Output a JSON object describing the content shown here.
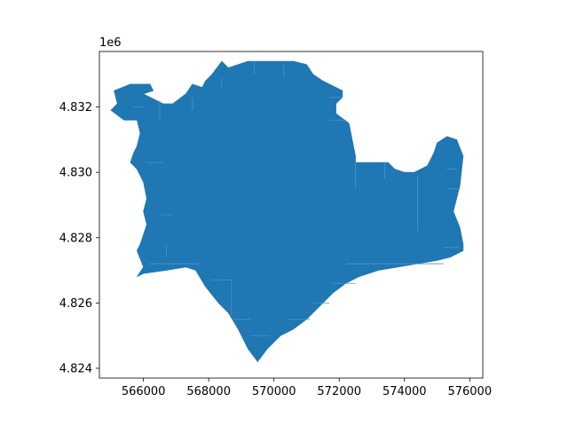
{
  "chart_data": {
    "type": "map",
    "title": "",
    "xlabel": "",
    "ylabel": "",
    "fill_color": "#1f77b4",
    "cell_edge_color": "#5a8fbf",
    "xlim": [
      564650,
      576400
    ],
    "ylim": [
      4823700,
      4833700
    ],
    "y_offset_label": "1e6",
    "x_ticks": [
      {
        "value": 566000,
        "label": "566000"
      },
      {
        "value": 568000,
        "label": "568000"
      },
      {
        "value": 570000,
        "label": "570000"
      },
      {
        "value": 572000,
        "label": "572000"
      },
      {
        "value": 574000,
        "label": "574000"
      },
      {
        "value": 576000,
        "label": "576000"
      }
    ],
    "y_ticks": [
      {
        "value": 4824000,
        "label": "4.824"
      },
      {
        "value": 4826000,
        "label": "4.826"
      },
      {
        "value": 4828000,
        "label": "4.828"
      },
      {
        "value": 4830000,
        "label": "4.830"
      },
      {
        "value": 4832000,
        "label": "4.832"
      }
    ],
    "boundary": [
      [
        568400,
        4833400
      ],
      [
        568600,
        4833200
      ],
      [
        569200,
        4833400
      ],
      [
        570600,
        4833400
      ],
      [
        571000,
        4833300
      ],
      [
        571200,
        4833000
      ],
      [
        571500,
        4832800
      ],
      [
        571900,
        4832600
      ],
      [
        572100,
        4832500
      ],
      [
        572100,
        4832300
      ],
      [
        571900,
        4832100
      ],
      [
        571900,
        4831800
      ],
      [
        572300,
        4831500
      ],
      [
        572400,
        4831000
      ],
      [
        572500,
        4830500
      ],
      [
        572500,
        4830300
      ],
      [
        572800,
        4830300
      ],
      [
        573200,
        4830300
      ],
      [
        573500,
        4830300
      ],
      [
        573700,
        4830100
      ],
      [
        574000,
        4830000
      ],
      [
        574300,
        4830000
      ],
      [
        574700,
        4830200
      ],
      [
        574900,
        4830600
      ],
      [
        575000,
        4830900
      ],
      [
        575300,
        4831100
      ],
      [
        575600,
        4831000
      ],
      [
        575800,
        4830500
      ],
      [
        575700,
        4829600
      ],
      [
        575500,
        4828800
      ],
      [
        575700,
        4828300
      ],
      [
        575800,
        4827800
      ],
      [
        575800,
        4827600
      ],
      [
        575400,
        4827400
      ],
      [
        575000,
        4827300
      ],
      [
        574400,
        4827200
      ],
      [
        573800,
        4827100
      ],
      [
        573200,
        4827000
      ],
      [
        572600,
        4826800
      ],
      [
        572200,
        4826600
      ],
      [
        571800,
        4826300
      ],
      [
        571400,
        4825900
      ],
      [
        571000,
        4825500
      ],
      [
        570600,
        4825200
      ],
      [
        570200,
        4825000
      ],
      [
        569800,
        4824600
      ],
      [
        569500,
        4824200
      ],
      [
        569200,
        4824600
      ],
      [
        568900,
        4825200
      ],
      [
        568600,
        4825700
      ],
      [
        568300,
        4826000
      ],
      [
        567900,
        4826500
      ],
      [
        567600,
        4827000
      ],
      [
        567300,
        4827100
      ],
      [
        566700,
        4827000
      ],
      [
        566000,
        4826900
      ],
      [
        565800,
        4826800
      ],
      [
        566000,
        4827100
      ],
      [
        565800,
        4827600
      ],
      [
        565900,
        4827800
      ],
      [
        566100,
        4828400
      ],
      [
        566000,
        4828800
      ],
      [
        566100,
        4829200
      ],
      [
        566000,
        4829700
      ],
      [
        565800,
        4830100
      ],
      [
        565600,
        4830300
      ],
      [
        565700,
        4830600
      ],
      [
        565800,
        4830800
      ],
      [
        565900,
        4831200
      ],
      [
        565800,
        4831600
      ],
      [
        565400,
        4831600
      ],
      [
        565000,
        4831900
      ],
      [
        565200,
        4832100
      ],
      [
        565100,
        4832500
      ],
      [
        565600,
        4832700
      ],
      [
        566200,
        4832700
      ],
      [
        566300,
        4832500
      ],
      [
        566000,
        4832400
      ],
      [
        566600,
        4832100
      ],
      [
        566900,
        4832100
      ],
      [
        567300,
        4832400
      ],
      [
        567500,
        4832700
      ],
      [
        567800,
        4832600
      ],
      [
        567900,
        4832800
      ],
      [
        568100,
        4833000
      ]
    ],
    "internal_boundaries": [
      [
        [
          565700,
          4832000
        ],
        [
          566000,
          4832000
        ]
      ],
      [
        [
          566100,
          4830300
        ],
        [
          566600,
          4830300
        ]
      ],
      [
        [
          566500,
          4828700
        ],
        [
          566900,
          4828700
        ]
      ],
      [
        [
          566200,
          4827200
        ],
        [
          567700,
          4827200
        ]
      ],
      [
        [
          568100,
          4826700
        ],
        [
          568700,
          4826700
        ]
      ],
      [
        [
          568700,
          4826700
        ],
        [
          568700,
          4825600
        ]
      ],
      [
        [
          568700,
          4825500
        ],
        [
          569300,
          4825500
        ]
      ],
      [
        [
          569300,
          4825000
        ],
        [
          569900,
          4825000
        ]
      ],
      [
        [
          570400,
          4825500
        ],
        [
          571100,
          4825500
        ]
      ],
      [
        [
          571200,
          4826000
        ],
        [
          571700,
          4826000
        ]
      ],
      [
        [
          571800,
          4826600
        ],
        [
          572500,
          4826600
        ]
      ],
      [
        [
          572200,
          4827200
        ],
        [
          575200,
          4827200
        ]
      ],
      [
        [
          575200,
          4827700
        ],
        [
          575700,
          4827700
        ]
      ],
      [
        [
          575300,
          4829500
        ],
        [
          575700,
          4829500
        ]
      ],
      [
        [
          575300,
          4830100
        ],
        [
          575600,
          4830100
        ]
      ],
      [
        [
          574400,
          4829900
        ],
        [
          574400,
          4828200
        ]
      ],
      [
        [
          572500,
          4830400
        ],
        [
          572500,
          4829500
        ]
      ],
      [
        [
          573400,
          4830300
        ],
        [
          573400,
          4829800
        ]
      ],
      [
        [
          571700,
          4832300
        ],
        [
          572100,
          4832300
        ]
      ],
      [
        [
          571700,
          4831600
        ],
        [
          572200,
          4831600
        ]
      ],
      [
        [
          568400,
          4832900
        ],
        [
          568400,
          4832600
        ]
      ],
      [
        [
          569400,
          4833400
        ],
        [
          569400,
          4833000
        ]
      ],
      [
        [
          570300,
          4833300
        ],
        [
          570300,
          4832900
        ]
      ],
      [
        [
          567500,
          4832300
        ],
        [
          567500,
          4831900
        ]
      ],
      [
        [
          566500,
          4832200
        ],
        [
          566500,
          4831600
        ]
      ],
      [
        [
          566700,
          4827800
        ],
        [
          566700,
          4827400
        ]
      ]
    ]
  }
}
